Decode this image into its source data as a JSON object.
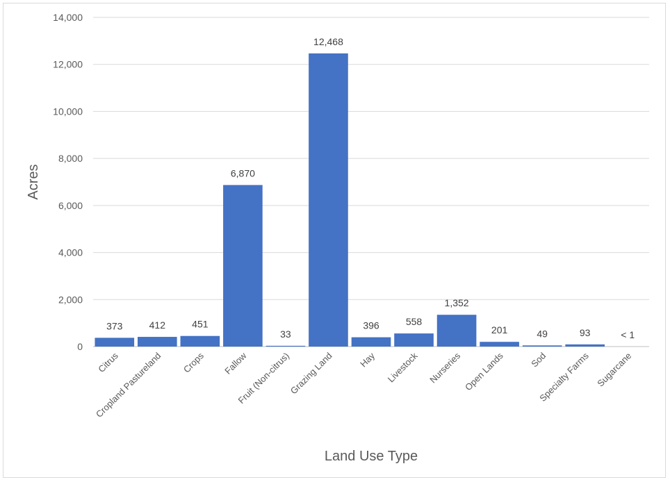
{
  "chart_data": {
    "type": "bar",
    "title": "",
    "xlabel": "Land Use Type",
    "ylabel": "Acres",
    "ylim": [
      0,
      14000
    ],
    "yticks": [
      0,
      2000,
      4000,
      6000,
      8000,
      10000,
      12000,
      14000
    ],
    "ytick_labels": [
      "0",
      "2,000",
      "4,000",
      "6,000",
      "8,000",
      "10,000",
      "12,000",
      "14,000"
    ],
    "grid": true,
    "legend": "none",
    "bar_color": "#4472C4",
    "categories": [
      "Citrus",
      "Cropland Pastureland",
      "Crops",
      "Fallow",
      "Fruit (Non-citrus)",
      "Grazing Land",
      "Hay",
      "Livestock",
      "Nurseries",
      "Open Lands",
      "Sod",
      "Specialty Farms",
      "Sugarcane"
    ],
    "values": [
      373,
      412,
      451,
      6870,
      33,
      12468,
      396,
      558,
      1352,
      201,
      49,
      93,
      0.5
    ],
    "data_labels": [
      "373",
      "412",
      "451",
      "6,870",
      "33",
      "12,468",
      "396",
      "558",
      "1,352",
      "201",
      "49",
      "93",
      "< 1"
    ]
  }
}
